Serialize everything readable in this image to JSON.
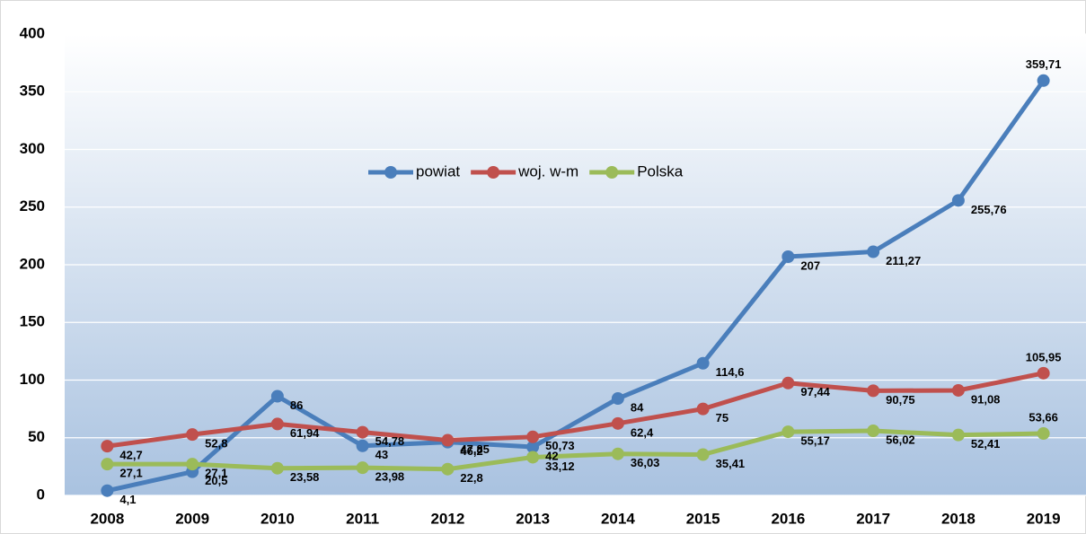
{
  "chart_data": {
    "type": "line",
    "categories": [
      "2008",
      "2009",
      "2010",
      "2011",
      "2012",
      "2013",
      "2014",
      "2015",
      "2016",
      "2017",
      "2018",
      "2019"
    ],
    "series": [
      {
        "name": "powiat",
        "color": "#4a7ebb",
        "values": [
          4.1,
          20.5,
          86,
          43,
          46.2,
          42,
          84,
          114.6,
          207,
          211.27,
          255.76,
          359.71
        ],
        "value_labels": [
          "4,1",
          "20,5",
          "86",
          "43",
          "46,2",
          "42",
          "84",
          "114,6",
          "207",
          "211,27",
          "255,76",
          "359,71"
        ]
      },
      {
        "name": "woj. w-m",
        "color": "#c0504d",
        "values": [
          42.7,
          52.8,
          61.94,
          54.78,
          47.85,
          50.73,
          62.4,
          75,
          97.44,
          90.75,
          91.08,
          105.95
        ],
        "value_labels": [
          "42,7",
          "52,8",
          "61,94",
          "54,78",
          "47,85",
          "50,73",
          "62,4",
          "75",
          "97,44",
          "90,75",
          "91,08",
          "105,95"
        ]
      },
      {
        "name": "Polska",
        "color": "#9bbb59",
        "values": [
          27.1,
          27.1,
          23.58,
          23.98,
          22.8,
          33.12,
          36.03,
          35.41,
          55.17,
          56.02,
          52.41,
          53.66
        ],
        "value_labels": [
          "27,1",
          "27,1",
          "23,58",
          "23,98",
          "22,8",
          "33,12",
          "36,03",
          "35,41",
          "55,17",
          "56,02",
          "52,41",
          "53,66"
        ]
      }
    ],
    "ylim": [
      0,
      400
    ],
    "yticks": [
      0,
      50,
      100,
      150,
      200,
      250,
      300,
      350,
      400
    ],
    "grid": true,
    "legend": "top"
  }
}
